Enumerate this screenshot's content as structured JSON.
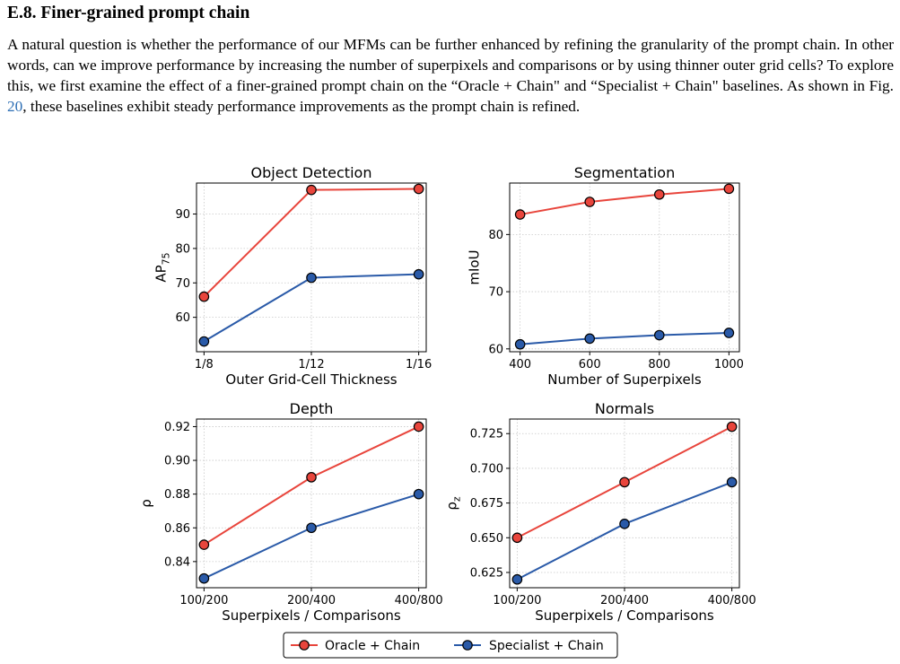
{
  "section": {
    "heading": "E.8. Finer-grained prompt chain",
    "para_before": "A natural question is whether the performance of our MFMs can be further enhanced by refining the granularity of the prompt chain. In other words, can we improve performance by increasing the number of superpixels and comparisons or by using thinner outer grid cells? To explore this, we first examine the effect of a finer-grained prompt chain on the “Oracle + Chain\" and “Specialist + Chain\" baselines. As shown in Fig. ",
    "fig_ref": "20",
    "para_after": ", these baselines exhibit steady performance improvements as the prompt chain is refined."
  },
  "colors": {
    "oracle": "#e8453c",
    "specialist": "#2a5aa8"
  },
  "legend": [
    "Oracle + Chain",
    "Specialist + Chain"
  ],
  "chart_data": [
    {
      "type": "line",
      "title": "Object Detection",
      "xlabel": "Outer Grid-Cell Thickness",
      "ylabel": {
        "base": "AP",
        "sub": "75"
      },
      "categories": [
        "1/8",
        "1/12",
        "1/16"
      ],
      "x": [
        0,
        1,
        2
      ],
      "xlim": [
        -0.07,
        2.07
      ],
      "ylim": [
        50,
        99
      ],
      "yticks": [
        60,
        70,
        80,
        90
      ],
      "ytick_labels": [
        "60",
        "70",
        "80",
        "90"
      ],
      "grid": true,
      "series": [
        {
          "name": "Oracle + Chain",
          "values": [
            66,
            97,
            97.3
          ]
        },
        {
          "name": "Specialist + Chain",
          "values": [
            53,
            71.5,
            72.5
          ]
        }
      ]
    },
    {
      "type": "line",
      "title": "Segmentation",
      "xlabel": "Number of Superpixels",
      "ylabel": {
        "base": "mIoU",
        "sub": ""
      },
      "categories": [
        "400",
        "600",
        "800",
        "1000"
      ],
      "x": [
        400,
        600,
        800,
        1000
      ],
      "xlim": [
        370,
        1030
      ],
      "ylim": [
        59.5,
        89
      ],
      "yticks": [
        60,
        70,
        80
      ],
      "ytick_labels": [
        "60",
        "70",
        "80"
      ],
      "grid": true,
      "series": [
        {
          "name": "Oracle + Chain",
          "values": [
            83.5,
            85.7,
            87,
            88
          ]
        },
        {
          "name": "Specialist + Chain",
          "values": [
            60.8,
            61.8,
            62.4,
            62.8
          ]
        }
      ]
    },
    {
      "type": "line",
      "title": "Depth",
      "xlabel": "Superpixels / Comparisons",
      "ylabel": {
        "base": "ρ",
        "sub": ""
      },
      "categories": [
        "100/200",
        "200/400",
        "400/800"
      ],
      "x": [
        0,
        1,
        2
      ],
      "xlim": [
        -0.07,
        2.07
      ],
      "ylim": [
        0.8245,
        0.9245
      ],
      "yticks": [
        0.84,
        0.86,
        0.88,
        0.9,
        0.92
      ],
      "ytick_labels": [
        "0.84",
        "0.86",
        "0.88",
        "0.90",
        "0.92"
      ],
      "grid": true,
      "series": [
        {
          "name": "Oracle + Chain",
          "values": [
            0.85,
            0.89,
            0.92
          ]
        },
        {
          "name": "Specialist + Chain",
          "values": [
            0.83,
            0.86,
            0.88
          ]
        }
      ]
    },
    {
      "type": "line",
      "title": "Normals",
      "xlabel": "Superpixels / Comparisons",
      "ylabel": {
        "base": "ρ",
        "sub": "z"
      },
      "categories": [
        "100/200",
        "200/400",
        "400/800"
      ],
      "x": [
        0,
        1,
        2
      ],
      "xlim": [
        -0.07,
        2.07
      ],
      "ylim": [
        0.614,
        0.7355
      ],
      "yticks": [
        0.625,
        0.65,
        0.675,
        0.7,
        0.725
      ],
      "ytick_labels": [
        "0.625",
        "0.650",
        "0.675",
        "0.700",
        "0.725"
      ],
      "grid": true,
      "series": [
        {
          "name": "Oracle + Chain",
          "values": [
            0.65,
            0.69,
            0.73
          ]
        },
        {
          "name": "Specialist + Chain",
          "values": [
            0.62,
            0.66,
            0.69
          ]
        }
      ]
    }
  ]
}
